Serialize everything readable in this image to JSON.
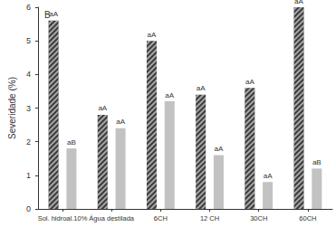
{
  "chart_data": {
    "type": "bar",
    "title": "B",
    "y_label": "Severidade (%)",
    "categories": [
      "Sol. hidroal.10%",
      "Água destilada",
      "6CH",
      "12 CH",
      "30CH",
      "60CH"
    ],
    "series": [
      {
        "color": "#3a3a3a",
        "values": [
          5.6,
          2.8,
          5.0,
          3.4,
          3.6,
          6.0
        ],
        "annotations": [
          "aA",
          "aA",
          "aA",
          "aA",
          "aA",
          "aA"
        ]
      },
      {
        "color": "#c2c2c2",
        "values": [
          1.8,
          2.4,
          3.2,
          1.6,
          0.8,
          1.2
        ],
        "annotations": [
          "aB",
          "aA",
          "aA",
          "aA",
          "aA",
          "aB"
        ]
      }
    ],
    "ylim": [
      0,
      6
    ],
    "yticks": [
      0,
      1,
      2,
      3,
      4,
      5,
      6
    ],
    "grid": false
  }
}
